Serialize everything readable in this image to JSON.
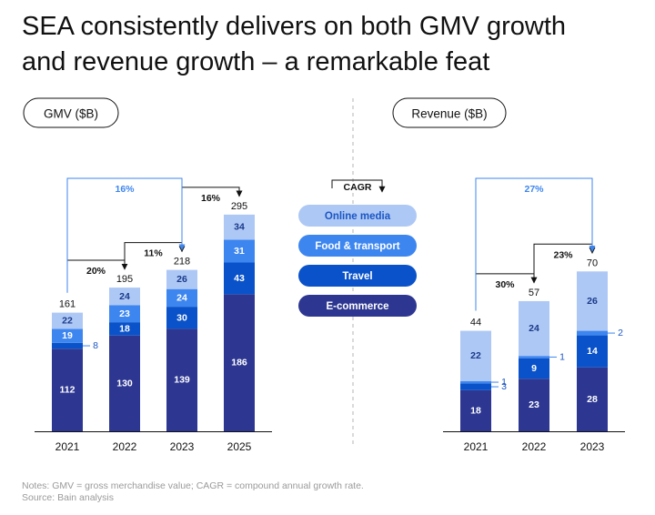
{
  "title_line1": "SEA consistently delivers on both GMV growth",
  "title_line2": "and revenue growth – a remarkable feat",
  "notes": "Notes: GMV = gross merchandise value; CAGR = compound annual growth rate.",
  "source": "Source: Bain analysis",
  "legend": {
    "title": "CAGR",
    "items": [
      {
        "label": "Online media",
        "color": "#aec8f5",
        "text_color": "#1a56c4"
      },
      {
        "label": "Food & transport",
        "color": "#3d86f0",
        "text_color": "#ffffff"
      },
      {
        "label": "Travel",
        "color": "#0a52c9",
        "text_color": "#ffffff"
      },
      {
        "label": "E-commerce",
        "color": "#2d3791",
        "text_color": "#ffffff"
      }
    ]
  },
  "chart_data": [
    {
      "type": "bar",
      "stacked": true,
      "title": "GMV ($B)",
      "categories": [
        "2021",
        "2022",
        "2023",
        "2025"
      ],
      "series": [
        {
          "name": "E-commerce",
          "values": [
            112,
            130,
            139,
            186
          ]
        },
        {
          "name": "Travel",
          "values": [
            8,
            18,
            30,
            43
          ]
        },
        {
          "name": "Food & transport",
          "values": [
            19,
            23,
            24,
            31
          ]
        },
        {
          "name": "Online media",
          "values": [
            22,
            24,
            26,
            34
          ]
        }
      ],
      "totals": [
        161,
        195,
        218,
        295
      ],
      "cagr": [
        {
          "from": "2021",
          "to": "2022",
          "label": "20%"
        },
        {
          "from": "2022",
          "to": "2023",
          "label": "11%"
        },
        {
          "from": "2023",
          "to": "2025",
          "label": "16%"
        },
        {
          "from": "2021",
          "to": "2023",
          "label": "16%",
          "highlight": true
        }
      ]
    },
    {
      "type": "bar",
      "stacked": true,
      "title": "Revenue ($B)",
      "categories": [
        "2021",
        "2022",
        "2023"
      ],
      "series": [
        {
          "name": "E-commerce",
          "values": [
            18,
            23,
            28
          ]
        },
        {
          "name": "Travel",
          "values": [
            3,
            9,
            14
          ]
        },
        {
          "name": "Food & transport",
          "values": [
            1,
            1,
            2
          ]
        },
        {
          "name": "Online media",
          "values": [
            22,
            24,
            26
          ]
        }
      ],
      "totals": [
        44,
        57,
        70
      ],
      "cagr": [
        {
          "from": "2021",
          "to": "2022",
          "label": "30%"
        },
        {
          "from": "2022",
          "to": "2023",
          "label": "23%"
        },
        {
          "from": "2021",
          "to": "2023",
          "label": "27%",
          "highlight": true
        }
      ]
    }
  ]
}
